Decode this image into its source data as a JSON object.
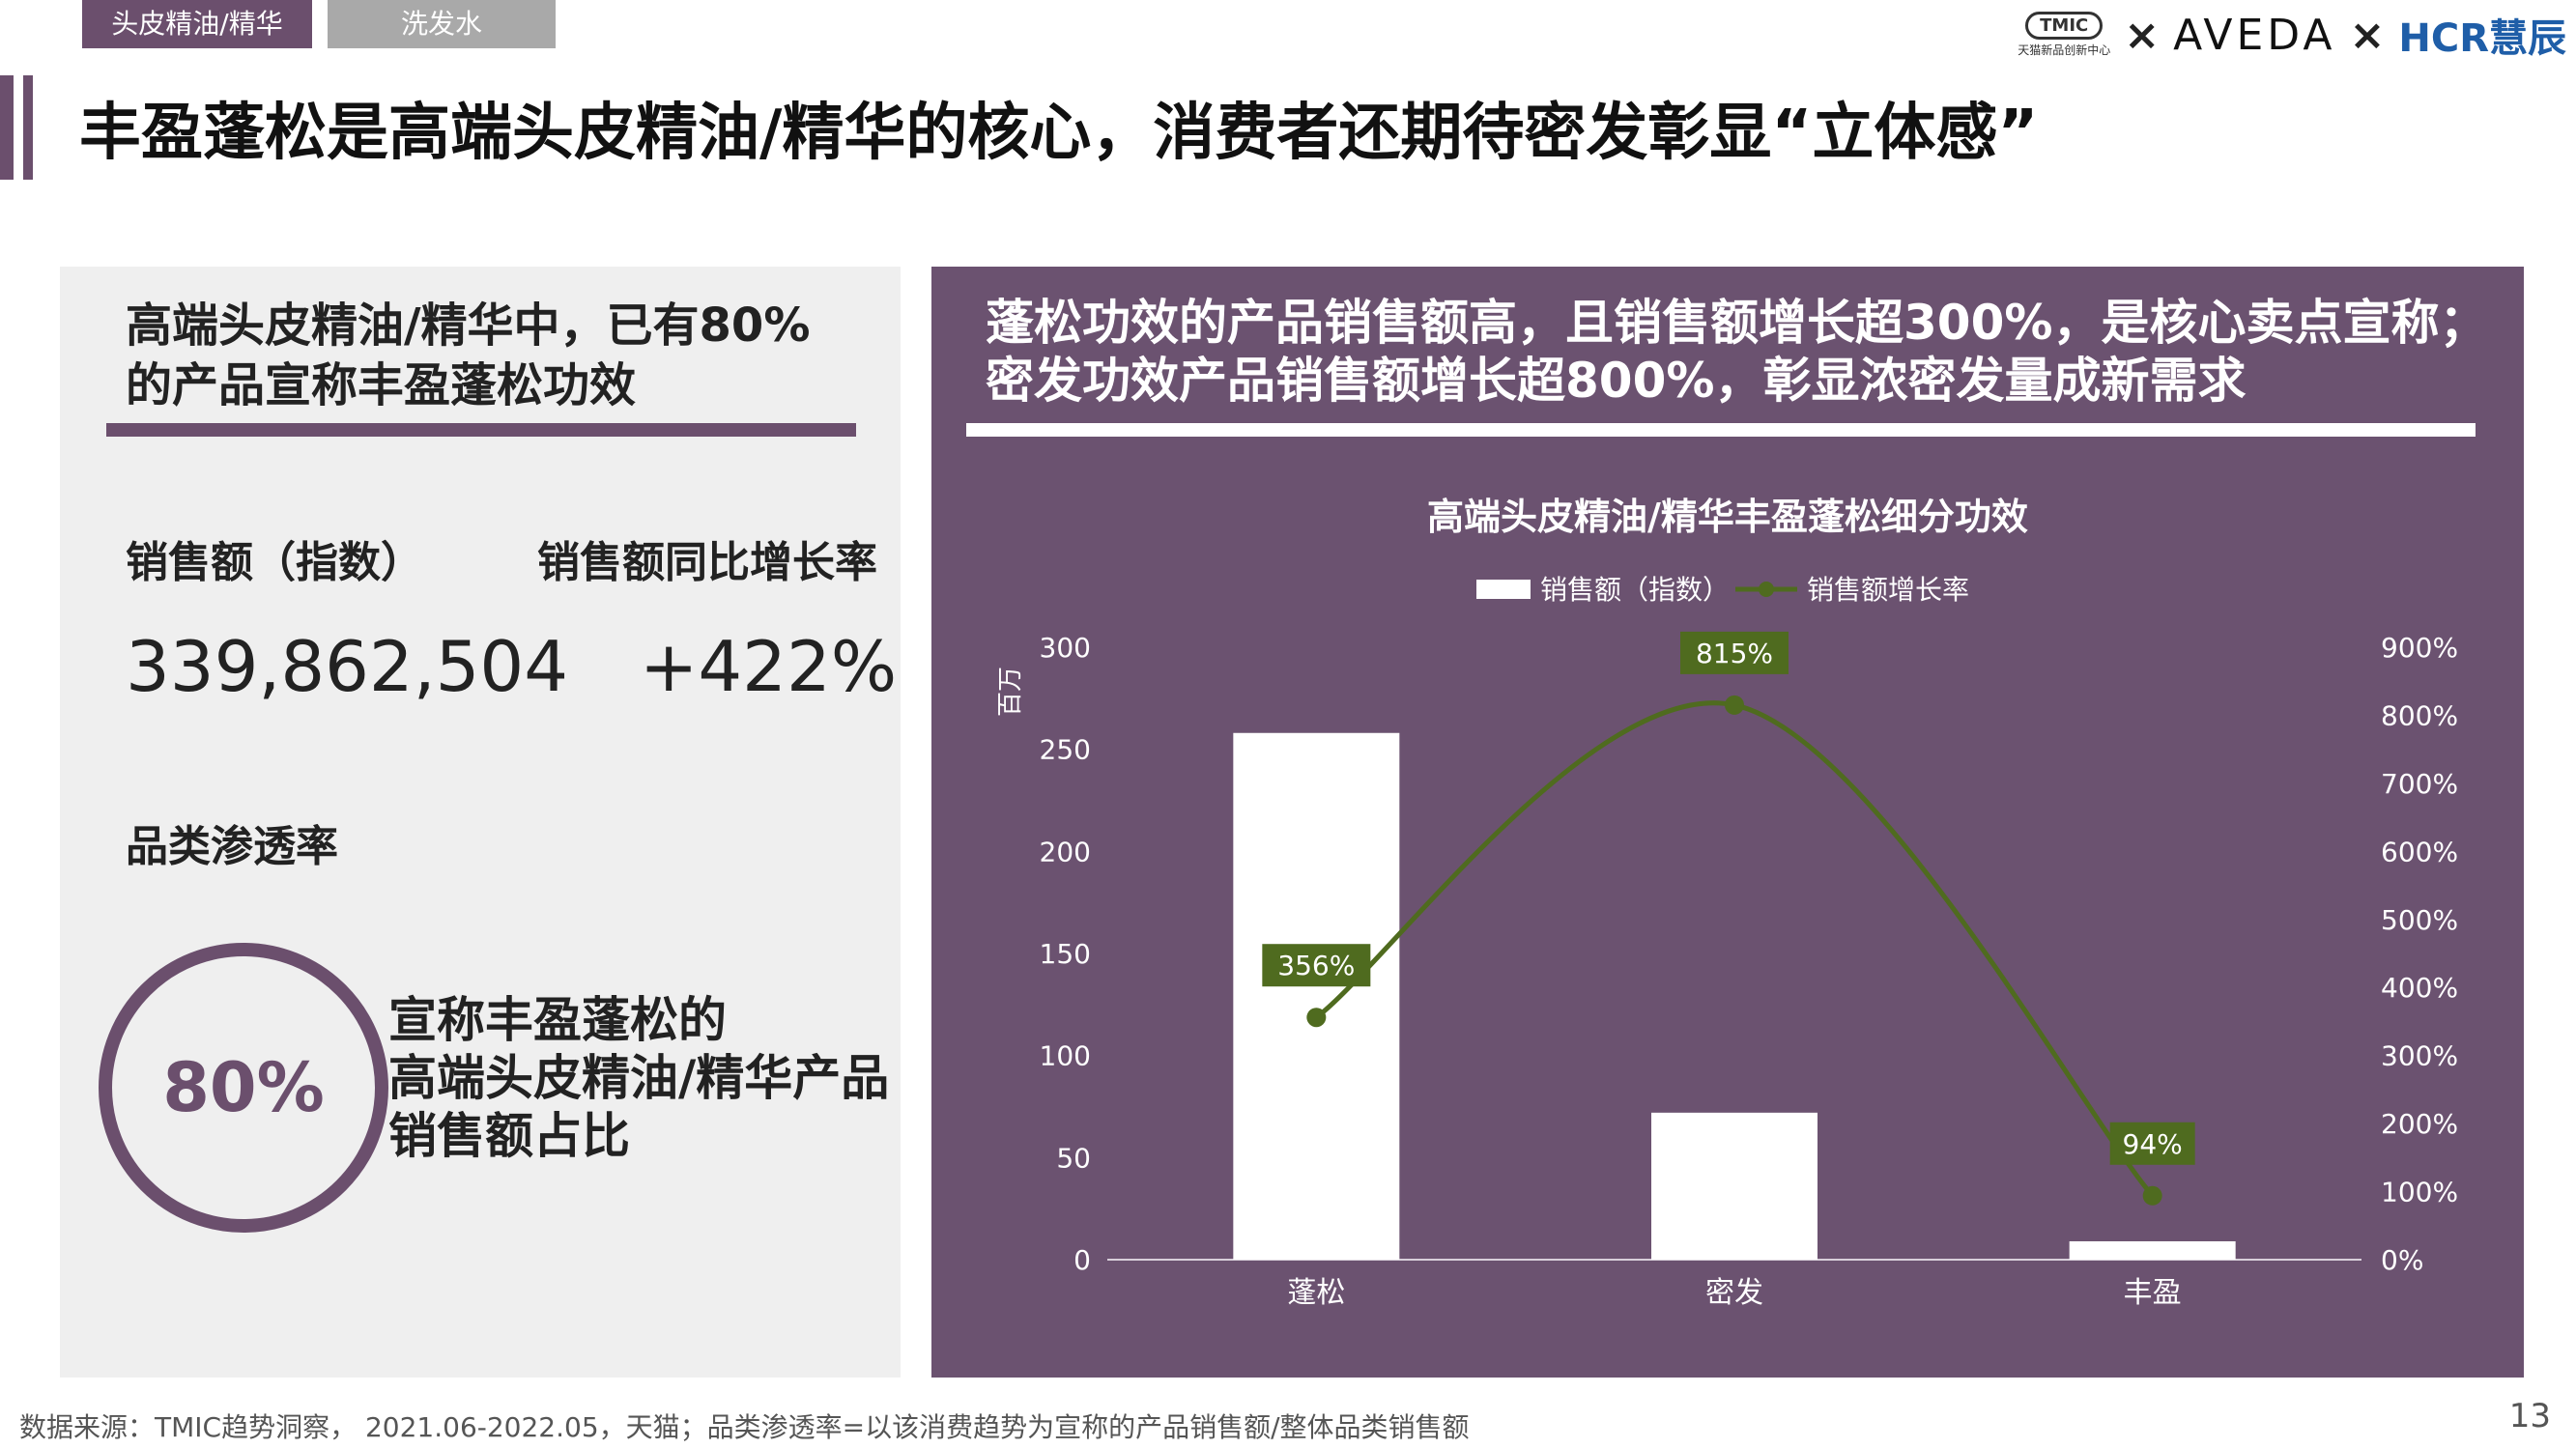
{
  "tabs": [
    {
      "label": "头皮精油/精华",
      "active": true
    },
    {
      "label": "洗发水",
      "active": false
    }
  ],
  "logos": {
    "tmic": "TMIC",
    "tmic_sub": "天猫新品创新中心",
    "separator": "×",
    "aveda": "AVEDA",
    "hcr": "HCR慧辰"
  },
  "page_title": "丰盈蓬松是高端头皮精油/精华的核心，消费者还期待密发彰显“立体感”",
  "left_panel": {
    "headline_line1": "高端头皮精油/精华中，已有80%",
    "headline_line2": "的产品宣称丰盈蓬松功效",
    "sales_label": "销售额（指数）",
    "sales_value": "339,862,504",
    "growth_label": "销售额同比增长率",
    "growth_value": "+422%",
    "penetration_label": "品类渗透率",
    "ring_value": "80%",
    "ring_caption_line1": "宣称丰盈蓬松的",
    "ring_caption_line2": "高端头皮精油/精华产品",
    "ring_caption_line3": "销售额占比"
  },
  "right_panel": {
    "headline_line1": "蓬松功效的产品销售额高，且销售额增长超300%，是核心卖点宣称；",
    "headline_line2": "密发功效产品销售额增长超800%，彰显浓密发量成新需求"
  },
  "chart_data": {
    "type": "bar",
    "title": "高端头皮精油/精华丰盈蓬松细分功效",
    "categories": [
      "蓬松",
      "密发",
      "丰盈"
    ],
    "series": [
      {
        "name": "销售额（指数）",
        "type": "bar",
        "axis": "left",
        "values": [
          258,
          72,
          9
        ]
      },
      {
        "name": "销售额增长率",
        "type": "line",
        "axis": "right",
        "values": [
          356,
          815,
          94
        ],
        "labels": [
          "356%",
          "815%",
          "94%"
        ]
      }
    ],
    "y_left": {
      "unit_label": "百万",
      "range": [
        0,
        300
      ],
      "ticks": [
        0,
        50,
        100,
        150,
        200,
        250,
        300
      ]
    },
    "y_right": {
      "range": [
        0,
        900
      ],
      "ticks": [
        "0%",
        "100%",
        "200%",
        "300%",
        "400%",
        "500%",
        "600%",
        "700%",
        "800%",
        "900%"
      ]
    },
    "legend": "top-center",
    "grid": false,
    "colors": {
      "bar": "#ffffff",
      "line": "#4f6b1f",
      "label_bg": "#4f6b1f",
      "text": "#ffffff"
    }
  },
  "footnote": "数据来源：TMIC趋势洞察， 2021.06-2022.05，天猫；品类渗透率=以该消费趋势为宣称的产品销售额/整体品类销售额",
  "page_number": "13"
}
